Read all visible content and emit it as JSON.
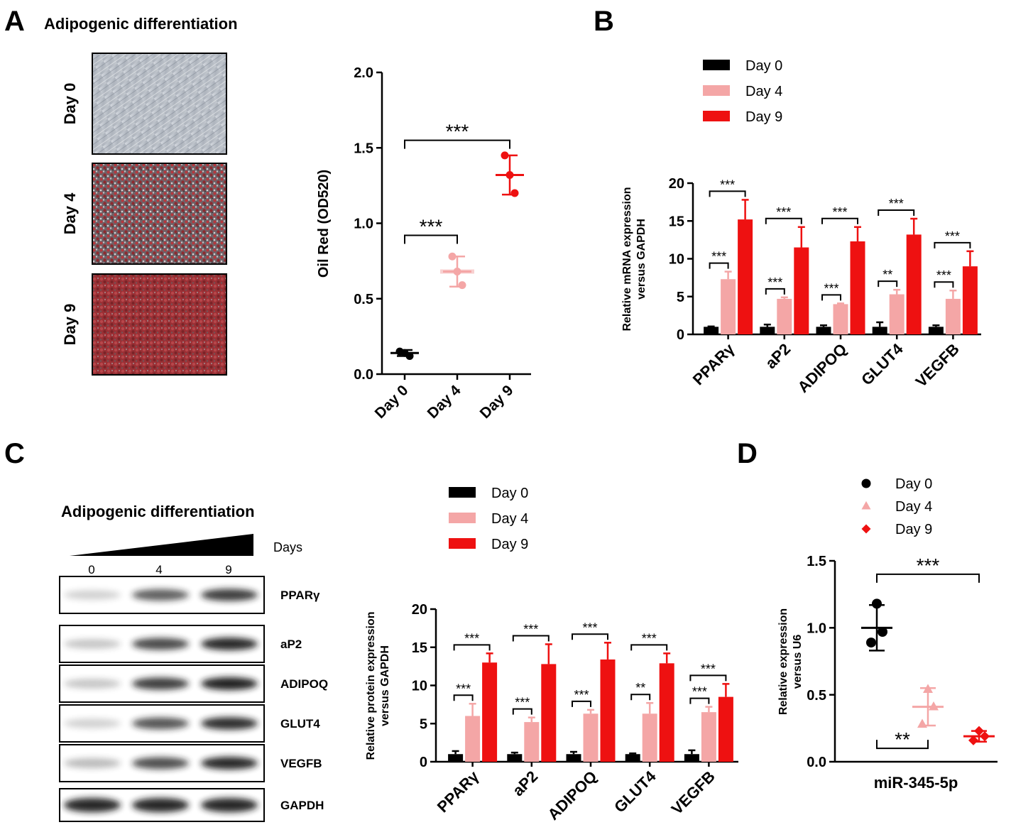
{
  "colors": {
    "day0": "#000000",
    "day4": "#f4a6a6",
    "day9": "#ee1111"
  },
  "panel_labels": {
    "a": "A",
    "b": "B",
    "c": "C",
    "d": "D"
  },
  "panelA": {
    "title": "Adipogenic differentiation",
    "micrograph_labels": [
      "Day 0",
      "Day 4",
      "Day 9"
    ]
  },
  "panelC": {
    "title": "Adipogenic differentiation",
    "days_label": "Days",
    "day_ticks": [
      "0",
      "4",
      "9"
    ],
    "blot_labels": [
      "PPARγ",
      "aP2",
      "ADIPOQ",
      "GLUT4",
      "VEGFB",
      "GAPDH"
    ]
  },
  "chart_data": [
    {
      "id": "A-oilred",
      "type": "scatter",
      "title": "",
      "xlabel": "",
      "ylabel": "Oil Red (OD520)",
      "categories": [
        "Day 0",
        "Day 4",
        "Day 9"
      ],
      "ylim": [
        0,
        2.0
      ],
      "yticks": [
        "0.0",
        "0.5",
        "1.0",
        "1.5",
        "2.0"
      ],
      "ytick_values": [
        0,
        0.5,
        1.0,
        1.5,
        2.0
      ],
      "means": [
        0.14,
        0.68,
        1.32
      ],
      "sd": [
        0.02,
        0.1,
        0.13
      ],
      "points": [
        [
          0.15,
          0.14,
          0.12
        ],
        [
          0.78,
          0.68,
          0.59
        ],
        [
          1.45,
          1.32,
          1.2
        ]
      ],
      "sig": [
        {
          "from": 0,
          "to": 1,
          "label": "***",
          "y": 0.92
        },
        {
          "from": 0,
          "to": 2,
          "label": "***",
          "y": 1.55
        }
      ]
    },
    {
      "id": "B-mrna",
      "type": "bar",
      "title": "",
      "xlabel": "",
      "ylabel": "Relative mRNA expression versus GAPDH",
      "ylabel_lines": [
        "Relative mRNA expression",
        "versus GAPDH"
      ],
      "categories": [
        "PPARγ",
        "aP2",
        "ADIPOQ",
        "GLUT4",
        "VEGFB"
      ],
      "ylim": [
        0,
        20
      ],
      "yticks": [
        "0",
        "5",
        "10",
        "15",
        "20"
      ],
      "ytick_values": [
        0,
        5,
        10,
        15,
        20
      ],
      "legend": "top",
      "series": [
        {
          "name": "Day 0",
          "values": [
            1.0,
            1.0,
            1.0,
            1.0,
            1.0
          ],
          "errors": [
            0.05,
            0.3,
            0.2,
            0.6,
            0.2
          ]
        },
        {
          "name": "Day 4",
          "values": [
            7.3,
            4.7,
            4.0,
            5.3,
            4.7
          ],
          "errors": [
            1.0,
            0.2,
            0.1,
            0.6,
            1.1
          ]
        },
        {
          "name": "Day 9",
          "values": [
            15.2,
            11.5,
            12.3,
            13.2,
            9.0
          ],
          "errors": [
            2.6,
            2.7,
            1.9,
            2.1,
            2.0
          ]
        }
      ],
      "sig_low": [
        "***",
        "***",
        "***",
        "**",
        "***"
      ],
      "sig_high": [
        "***",
        "***",
        "***",
        "***",
        "***"
      ]
    },
    {
      "id": "C-protein",
      "type": "bar",
      "title": "",
      "xlabel": "",
      "ylabel": "Relative protein expression versus GAPDH",
      "ylabel_lines": [
        "Relative protein expression",
        "versus GAPDH"
      ],
      "categories": [
        "PPARγ",
        "aP2",
        "ADIPOQ",
        "GLUT4",
        "VEGFB"
      ],
      "ylim": [
        0,
        20
      ],
      "yticks": [
        "0",
        "5",
        "10",
        "15",
        "20"
      ],
      "ytick_values": [
        0,
        5,
        10,
        15,
        20
      ],
      "legend": "top",
      "series": [
        {
          "name": "Day 0",
          "values": [
            1.0,
            1.0,
            1.0,
            1.0,
            1.0
          ],
          "errors": [
            0.4,
            0.2,
            0.3,
            0.1,
            0.5
          ]
        },
        {
          "name": "Day 4",
          "values": [
            6.0,
            5.2,
            6.3,
            6.3,
            6.5
          ],
          "errors": [
            1.6,
            0.6,
            0.5,
            1.4,
            0.7
          ]
        },
        {
          "name": "Day 9",
          "values": [
            13.0,
            12.8,
            13.4,
            12.9,
            8.5
          ],
          "errors": [
            1.2,
            2.6,
            2.2,
            1.3,
            1.7
          ]
        }
      ],
      "sig_low": [
        "***",
        "***",
        "***",
        "**",
        "***"
      ],
      "sig_high": [
        "***",
        "***",
        "***",
        "***",
        "***"
      ]
    },
    {
      "id": "D-mir",
      "type": "scatter",
      "title": "",
      "xlabel": "miR-345-5p",
      "ylabel": "Relative expression versus U6",
      "ylabel_lines": [
        "Relative expression",
        "versus U6"
      ],
      "ylim": [
        0,
        1.5
      ],
      "yticks": [
        "0.0",
        "0.5",
        "1.0",
        "1.5"
      ],
      "ytick_values": [
        0,
        0.5,
        1.0,
        1.5
      ],
      "legend": "top",
      "series": [
        {
          "name": "Day 0",
          "marker": "circle",
          "mean": 1.0,
          "sd": 0.17,
          "points": [
            1.18,
            0.97,
            0.89
          ]
        },
        {
          "name": "Day 4",
          "marker": "triangle",
          "mean": 0.41,
          "sd": 0.14,
          "points": [
            0.54,
            0.41,
            0.28
          ]
        },
        {
          "name": "Day 9",
          "marker": "diamond",
          "mean": 0.19,
          "sd": 0.04,
          "points": [
            0.23,
            0.19,
            0.16
          ]
        }
      ],
      "sig": [
        {
          "from": 0,
          "to": 2,
          "label": "***",
          "y": 1.4
        },
        {
          "from": 0,
          "to": 1,
          "label": "**",
          "y": 0.1
        }
      ]
    }
  ]
}
